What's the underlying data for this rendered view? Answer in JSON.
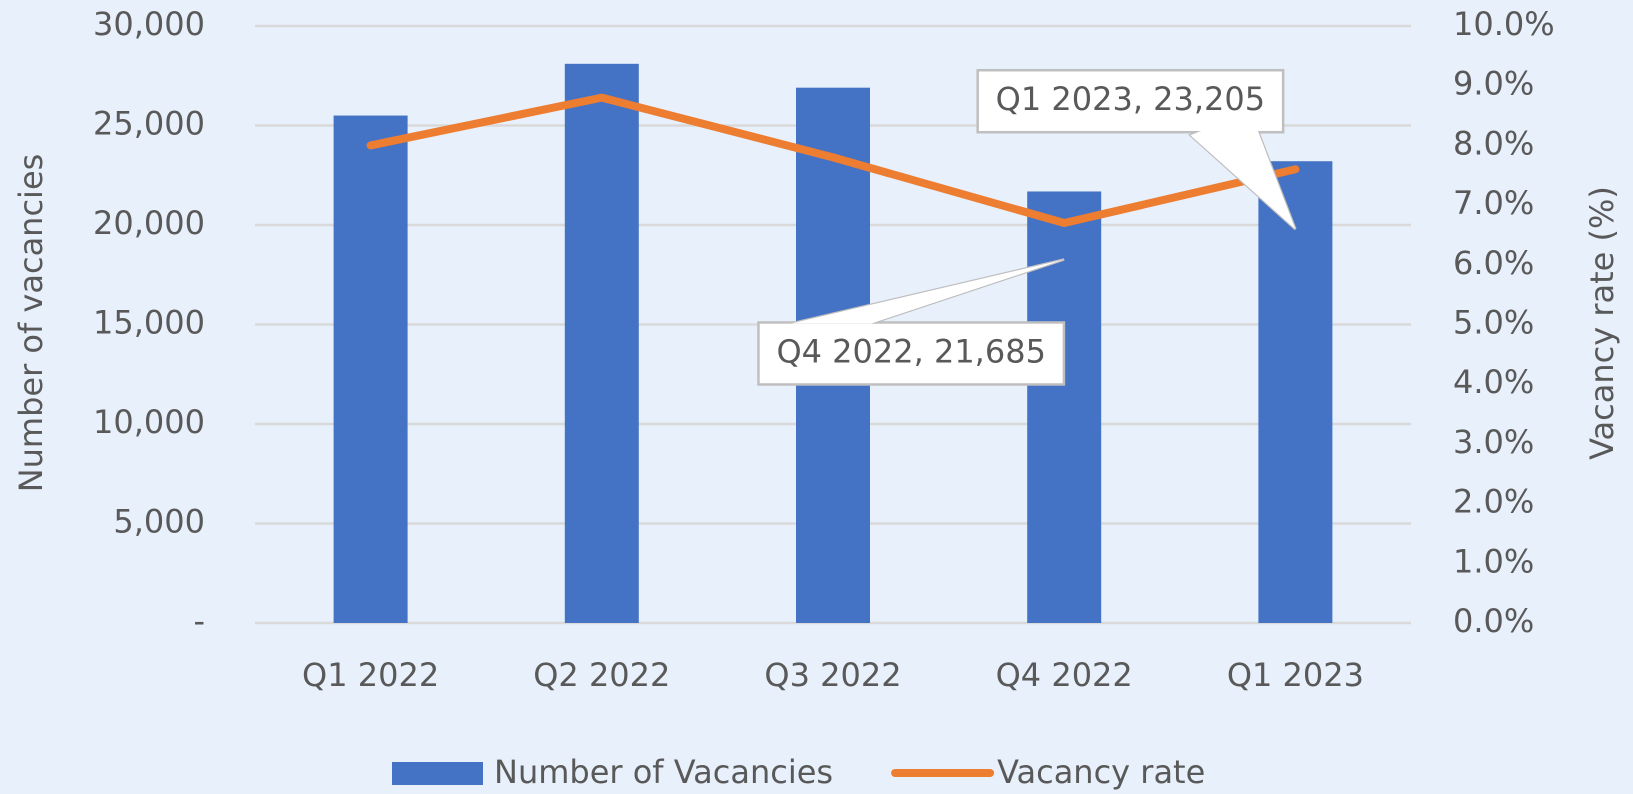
{
  "chart_data": {
    "type": "bar_line",
    "categories": [
      "Q1 2022",
      "Q2 2022",
      "Q3 2022",
      "Q4 2022",
      "Q1 2023"
    ],
    "series": [
      {
        "name": "Number of Vacancies",
        "color": "#4472c4",
        "values": [
          25500,
          28100,
          26900,
          21685,
          23205
        ],
        "value_labels": [
          null,
          null,
          null,
          "Q4 2022,  21,685",
          "Q1 2023,  23,205"
        ]
      },
      {
        "name": "Vacancy rate",
        "color": "#ed7d31",
        "axis": "y2",
        "values": [
          8.0,
          8.8,
          7.8,
          6.7,
          7.6
        ]
      }
    ],
    "y_label": "Number of vacancies",
    "y2_label": "Vacancy rate (%)",
    "ylim": [
      0,
      30000
    ],
    "yticks": [
      {
        "value": 0,
        "label": "-"
      },
      {
        "value": 5000,
        "label": "5,000"
      },
      {
        "value": 10000,
        "label": "10,000"
      },
      {
        "value": 15000,
        "label": "15,000"
      },
      {
        "value": 20000,
        "label": "20,000"
      },
      {
        "value": 25000,
        "label": "25,000"
      },
      {
        "value": 30000,
        "label": "30,000"
      }
    ],
    "y2lim": [
      0,
      10
    ],
    "y2ticks": [
      {
        "value": 0,
        "label": "0.0%"
      },
      {
        "value": 1,
        "label": "1.0%"
      },
      {
        "value": 2,
        "label": "2.0%"
      },
      {
        "value": 3,
        "label": "3.0%"
      },
      {
        "value": 4,
        "label": "4.0%"
      },
      {
        "value": 5,
        "label": "5.0%"
      },
      {
        "value": 6,
        "label": "6.0%"
      },
      {
        "value": 7,
        "label": "7.0%"
      },
      {
        "value": 8,
        "label": "8.0%"
      },
      {
        "value": 9,
        "label": "9.0%"
      },
      {
        "value": 10,
        "label": "10.0%"
      }
    ],
    "grid": true,
    "legend": "bottom"
  }
}
